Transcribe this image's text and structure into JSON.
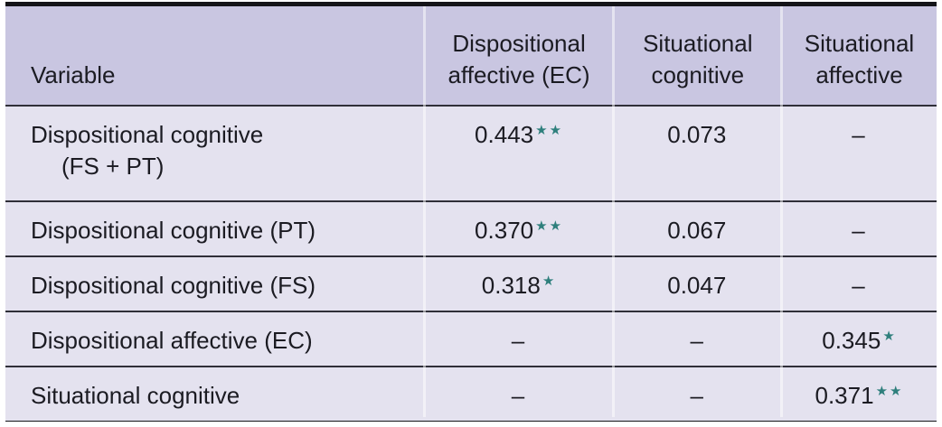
{
  "table": {
    "header": {
      "variable": "Variable",
      "col1": "Dispositional affective (EC)",
      "col2": "Situational cognitive",
      "col3": "Situational affective"
    },
    "rows": [
      {
        "variable": {
          "line1": "Dispositional cognitive",
          "line2": "(FS + PT)"
        },
        "cells": [
          {
            "value": "0.443",
            "sig": "★★"
          },
          {
            "value": "0.073",
            "sig": ""
          },
          {
            "value": "–",
            "sig": ""
          }
        ]
      },
      {
        "variable": {
          "line1": "Dispositional cognitive (PT)",
          "line2": ""
        },
        "cells": [
          {
            "value": "0.370",
            "sig": "★★"
          },
          {
            "value": "0.067",
            "sig": ""
          },
          {
            "value": "–",
            "sig": ""
          }
        ]
      },
      {
        "variable": {
          "line1": "Dispositional cognitive (FS)",
          "line2": ""
        },
        "cells": [
          {
            "value": "0.318",
            "sig": "★"
          },
          {
            "value": "0.047",
            "sig": ""
          },
          {
            "value": "–",
            "sig": ""
          }
        ]
      },
      {
        "variable": {
          "line1": "Dispositional affective (EC)",
          "line2": ""
        },
        "cells": [
          {
            "value": "–",
            "sig": ""
          },
          {
            "value": "–",
            "sig": ""
          },
          {
            "value": "0.345",
            "sig": "★"
          }
        ]
      },
      {
        "variable": {
          "line1": "Situational cognitive",
          "line2": ""
        },
        "cells": [
          {
            "value": "–",
            "sig": ""
          },
          {
            "value": "–",
            "sig": ""
          },
          {
            "value": "0.371",
            "sig": "★★"
          }
        ]
      }
    ]
  },
  "colors": {
    "header_background": "#c9c6e1",
    "row_background": "#e4e2ef",
    "significance_star": "#2e7f7c",
    "outer_border": "#141418",
    "row_rule": "#2f2f38",
    "column_divider": "rgba(255,255,255,0.5)",
    "text": "#1b1b22"
  }
}
